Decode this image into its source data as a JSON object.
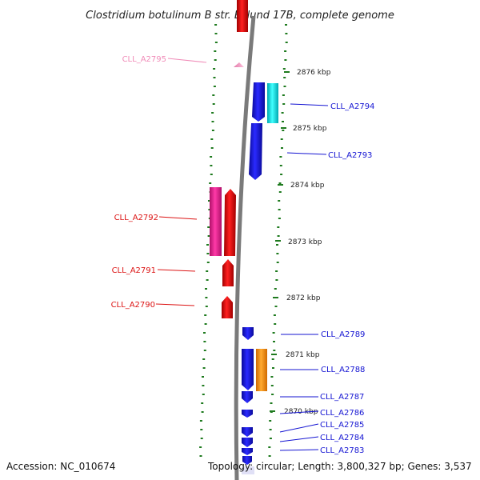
{
  "title": "Clostridium botulinum B str. Eklund 17B, complete genome",
  "footer": {
    "accession": "Accession: NC_010674",
    "topology": "Topology: circular; Length: 3,800,327 bp; Genes: 3,537"
  },
  "ticks": [
    {
      "label": "2876 kbp",
      "kbp": 2876
    },
    {
      "label": "2875 kbp",
      "kbp": 2875
    },
    {
      "label": "2874 kbp",
      "kbp": 2874
    },
    {
      "label": "2873 kbp",
      "kbp": 2873
    },
    {
      "label": "2872 kbp",
      "kbp": 2872
    },
    {
      "label": "2871 kbp",
      "kbp": 2871
    },
    {
      "label": "2870 kbp",
      "kbp": 2870
    }
  ],
  "genes": [
    {
      "label": "CLL_A2795",
      "strand": "reverse",
      "color": "#f4a6c8"
    },
    {
      "label": "CLL_A2794",
      "strand": "forward",
      "color": "#1414d2"
    },
    {
      "label": "CLL_A2793",
      "strand": "forward",
      "color": "#1414d2"
    },
    {
      "label": "CLL_A2792",
      "strand": "reverse",
      "color": "#dc1414"
    },
    {
      "label": "CLL_A2791",
      "strand": "reverse",
      "color": "#dc1414"
    },
    {
      "label": "CLL_A2790",
      "strand": "reverse",
      "color": "#dc1414"
    },
    {
      "label": "CLL_A2789",
      "strand": "forward",
      "color": "#1414d2"
    },
    {
      "label": "CLL_A2788",
      "strand": "forward",
      "color": "#1414d2"
    },
    {
      "label": "CLL_A2787",
      "strand": "forward",
      "color": "#1414d2"
    },
    {
      "label": "CLL_A2786",
      "strand": "forward",
      "color": "#1414d2"
    },
    {
      "label": "CLL_A2785",
      "strand": "forward",
      "color": "#1414d2"
    },
    {
      "label": "CLL_A2784",
      "strand": "forward",
      "color": "#1414d2"
    },
    {
      "label": "CLL_A2783",
      "strand": "forward",
      "color": "#1414d2"
    }
  ],
  "colors": {
    "forward_cds": "#1414d2",
    "reverse_cds": "#dc1414",
    "forward_feature": "#00e5ee",
    "reverse_feature": "#e6198c",
    "orange_feature": "#ff8c00",
    "backbone": "#888888",
    "gc_dots": "#1e7a1e"
  }
}
